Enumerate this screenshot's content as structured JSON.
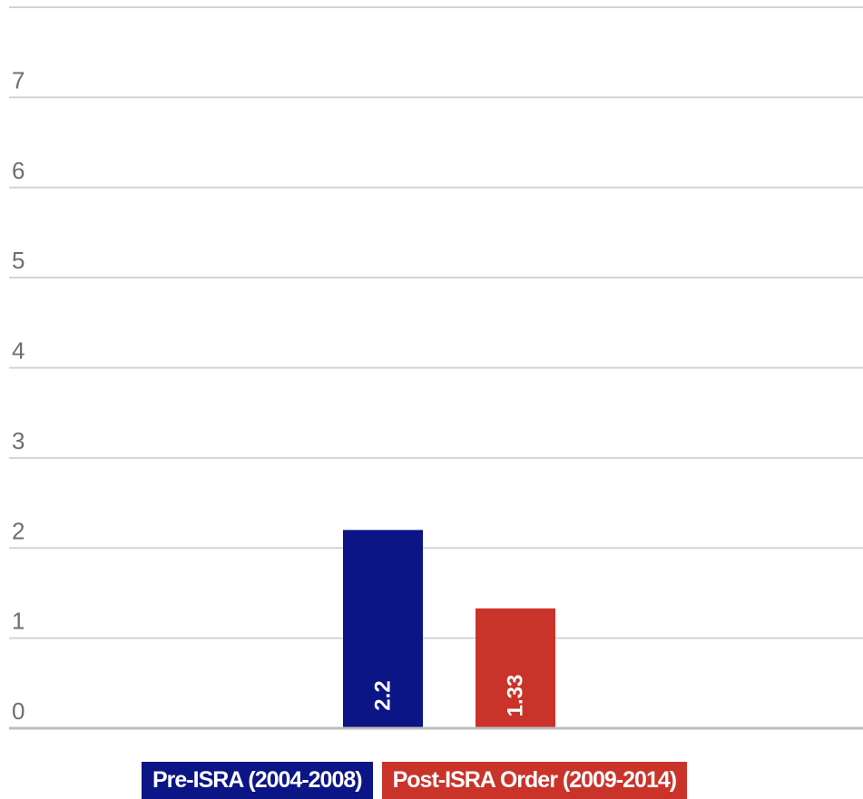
{
  "chart_data": {
    "type": "bar",
    "categories": [
      "Pre-ISRA (2004-2008)",
      "Post-ISRA Order (2009-2014)"
    ],
    "values": [
      2.2,
      1.33
    ],
    "value_labels": [
      "2.2",
      "1.33"
    ],
    "colors": [
      "#0b1585",
      "#c9332a"
    ],
    "ylim": [
      0,
      8
    ],
    "yticks": [
      "0",
      "1",
      "2",
      "3",
      "4",
      "5",
      "6",
      "7",
      "8"
    ],
    "grid": true,
    "legend": "bottom",
    "legend_entries": [
      {
        "label": "Pre-ISRA (2004-2008)",
        "color": "#0b1585"
      },
      {
        "label": "Post-ISRA Order (2009-2014)",
        "color": "#c9332a"
      }
    ]
  }
}
